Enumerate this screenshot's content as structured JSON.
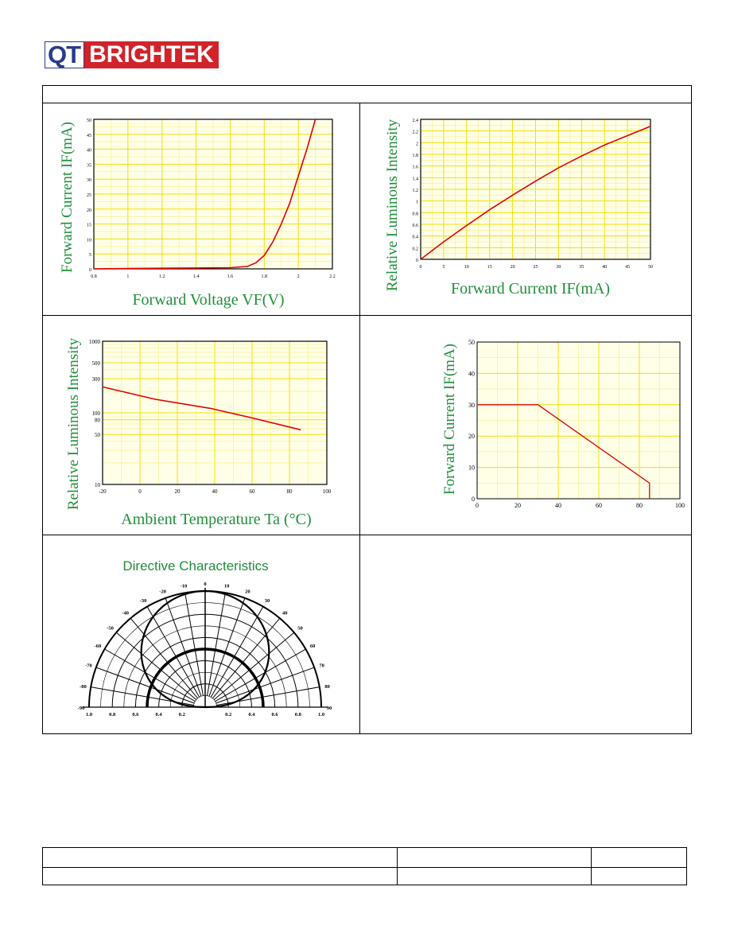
{
  "logo": {
    "part1": "QT",
    "part2": "BRIGHTEK"
  },
  "charts": {
    "chart1": {
      "type": "line",
      "xlabel": "Forward Voltage VF(V)",
      "ylabel": "Forward Current IF(mA)",
      "xticks": [
        "0.8",
        "1",
        "1.2",
        "1.4",
        "1.6",
        "1.8",
        "2",
        "2.2"
      ],
      "yticks": [
        "0",
        "5",
        "10",
        "15",
        "20",
        "25",
        "30",
        "35",
        "40",
        "45",
        "50"
      ],
      "xlim": [
        0.8,
        2.2
      ],
      "ylim": [
        0,
        50
      ],
      "x": [
        0.8,
        1.0,
        1.2,
        1.4,
        1.6,
        1.7,
        1.75,
        1.8,
        1.85,
        1.9,
        1.95,
        2.0,
        2.05,
        2.1
      ],
      "y": [
        0,
        0.1,
        0.2,
        0.3,
        0.4,
        0.8,
        2,
        4.5,
        9,
        15,
        22,
        31,
        40,
        50
      ],
      "color": "#e00000"
    },
    "chart2": {
      "type": "line",
      "xlabel": "Forward Current IF(mA)",
      "ylabel": "Relative Luminous Intensity",
      "xticks": [
        "0",
        "5",
        "10",
        "15",
        "20",
        "25",
        "30",
        "35",
        "40",
        "45",
        "50"
      ],
      "yticks": [
        "0",
        "0.2",
        "0.4",
        "0.6",
        "0.8",
        "1",
        "1.2",
        "1.4",
        "1.6",
        "1.8",
        "2",
        "2.2",
        "2.4"
      ],
      "xlim": [
        0,
        50
      ],
      "ylim": [
        0,
        2.4
      ],
      "x": [
        0,
        5,
        10,
        15,
        20,
        25,
        30,
        35,
        40,
        45,
        50
      ],
      "y": [
        0,
        0.3,
        0.58,
        0.85,
        1.1,
        1.34,
        1.57,
        1.77,
        1.96,
        2.12,
        2.28
      ],
      "color": "#e00000"
    },
    "chart3": {
      "type": "line",
      "xlabel": "Ambient Temperature Ta (°C)",
      "ylabel": "Relative Luminous Intensity",
      "xticks": [
        "-20",
        "0",
        "20",
        "40",
        "60",
        "80",
        "100"
      ],
      "yticks": [
        "10",
        "50",
        "80",
        "100",
        "300",
        "500",
        "1000"
      ],
      "xlim": [
        -20,
        100
      ],
      "ylim": [
        10,
        1000
      ],
      "yscale": "log",
      "x": [
        -20,
        8,
        38,
        60,
        86
      ],
      "y": [
        230,
        155,
        115,
        85,
        58
      ],
      "color": "#e00000"
    },
    "chart4": {
      "type": "line",
      "xlabel": "",
      "ylabel": "Forward Current IF(mA)",
      "xticks": [
        "0",
        "20",
        "40",
        "60",
        "80",
        "100"
      ],
      "yticks": [
        "0",
        "10",
        "20",
        "30",
        "40",
        "50"
      ],
      "xlim": [
        0,
        100
      ],
      "ylim": [
        0,
        50
      ],
      "x": [
        0,
        30,
        85,
        85
      ],
      "y": [
        30,
        30,
        5,
        0
      ],
      "color": "#e00000"
    },
    "chart5": {
      "type": "polar",
      "title": "Directive Characteristics",
      "angle_labels": [
        "0",
        "10",
        "20",
        "30",
        "40",
        "50",
        "60",
        "70",
        "80",
        "90",
        "-10",
        "-20",
        "-30",
        "-40",
        "-50",
        "-60",
        "-70",
        "-80",
        "-90"
      ],
      "radial_labels": [
        "1.0",
        "0.8",
        "0.6",
        "0.4",
        "0.2",
        "0.2",
        "0.4",
        "0.6",
        "0.8",
        "1.0"
      ]
    }
  }
}
